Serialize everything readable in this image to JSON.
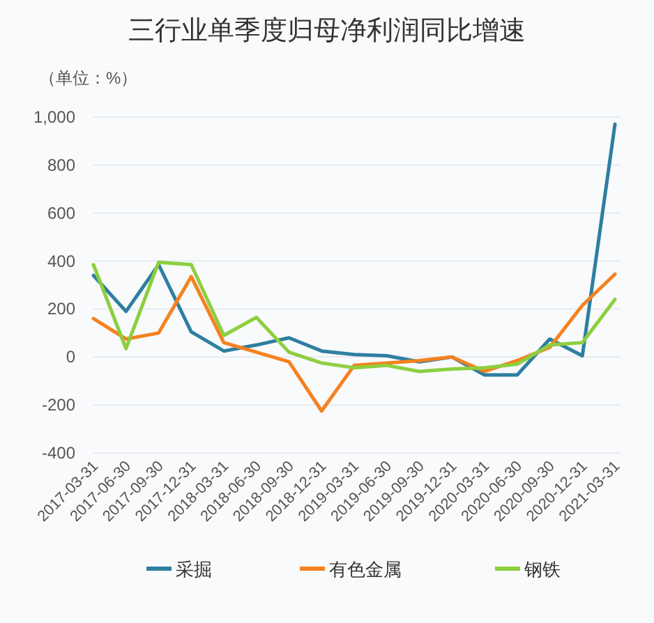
{
  "chart_data": {
    "type": "line",
    "title": "三行业单季度归母净利润同比增速",
    "ylabel": "（单位：%）",
    "categories": [
      "2017-03-31",
      "2017-06-30",
      "2017-09-30",
      "2017-12-31",
      "2018-03-31",
      "2018-06-30",
      "2018-09-30",
      "2018-12-31",
      "2019-03-31",
      "2019-06-30",
      "2019-09-30",
      "2019-12-31",
      "2020-03-31",
      "2020-06-30",
      "2020-09-30",
      "2020-12-31",
      "2021-03-31"
    ],
    "series": [
      {
        "name": "采掘",
        "color": "#2e7fa0",
        "values": [
          340,
          190,
          385,
          105,
          25,
          50,
          80,
          25,
          10,
          5,
          -20,
          0,
          -75,
          -75,
          75,
          5,
          970
        ]
      },
      {
        "name": "有色金属",
        "color": "#f5821f",
        "values": [
          160,
          75,
          100,
          335,
          60,
          20,
          -20,
          -225,
          -35,
          -25,
          -15,
          0,
          -60,
          -15,
          40,
          215,
          345
        ]
      },
      {
        "name": "钢铁",
        "color": "#8dcf3f",
        "values": [
          385,
          35,
          395,
          385,
          90,
          165,
          20,
          -25,
          -45,
          -35,
          -60,
          -50,
          -45,
          -30,
          50,
          60,
          240
        ]
      }
    ],
    "ylim": [
      -400,
      1000
    ],
    "yticks": [
      -400,
      -200,
      0,
      200,
      400,
      600,
      800,
      {
        "value": 1000,
        "label": "1,000"
      }
    ],
    "grid": "y",
    "legend": "bottom",
    "marker": "none",
    "line_style": "solid"
  }
}
